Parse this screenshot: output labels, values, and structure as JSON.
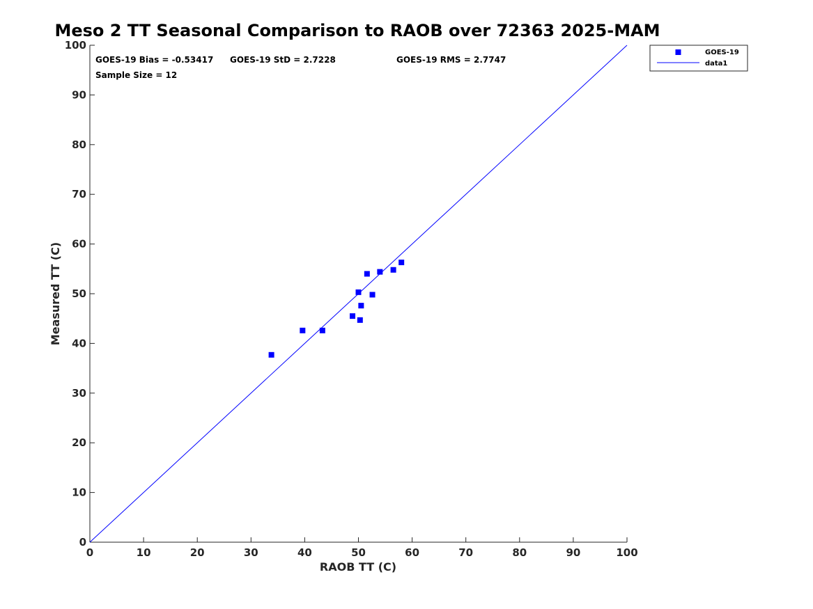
{
  "chart_data": {
    "type": "scatter",
    "title": "Meso 2 TT Seasonal Comparison to RAOB over 72363 2025-MAM",
    "xlabel": "RAOB TT (C)",
    "ylabel": "Measured TT (C)",
    "xlim": [
      0,
      100
    ],
    "ylim": [
      0,
      100
    ],
    "xticks": [
      "0",
      "10",
      "20",
      "30",
      "40",
      "50",
      "60",
      "70",
      "80",
      "90",
      "100"
    ],
    "yticks": [
      "0",
      "10",
      "20",
      "30",
      "40",
      "50",
      "60",
      "70",
      "80",
      "90",
      "100"
    ],
    "grid": false,
    "legend_position": "outside-top-right",
    "series": [
      {
        "name": "GOES-19",
        "kind": "scatter",
        "marker": "square",
        "color": "#0000ff",
        "x": [
          33.8,
          39.6,
          43.3,
          48.9,
          50.0,
          50.3,
          50.5,
          51.6,
          52.6,
          54.0,
          56.5,
          58.0
        ],
        "y": [
          37.7,
          42.6,
          42.6,
          45.5,
          50.3,
          44.7,
          47.6,
          54.0,
          49.8,
          54.4,
          54.8,
          56.3
        ]
      },
      {
        "name": "data1",
        "kind": "line",
        "color": "#0000ff",
        "x": [
          0,
          100
        ],
        "y": [
          0,
          100
        ]
      }
    ],
    "annotations": [
      "GOES-19 Bias = -0.53417",
      "GOES-19 StD = 2.7228",
      "GOES-19 RMS = 2.7747",
      "Sample Size = 12"
    ]
  }
}
